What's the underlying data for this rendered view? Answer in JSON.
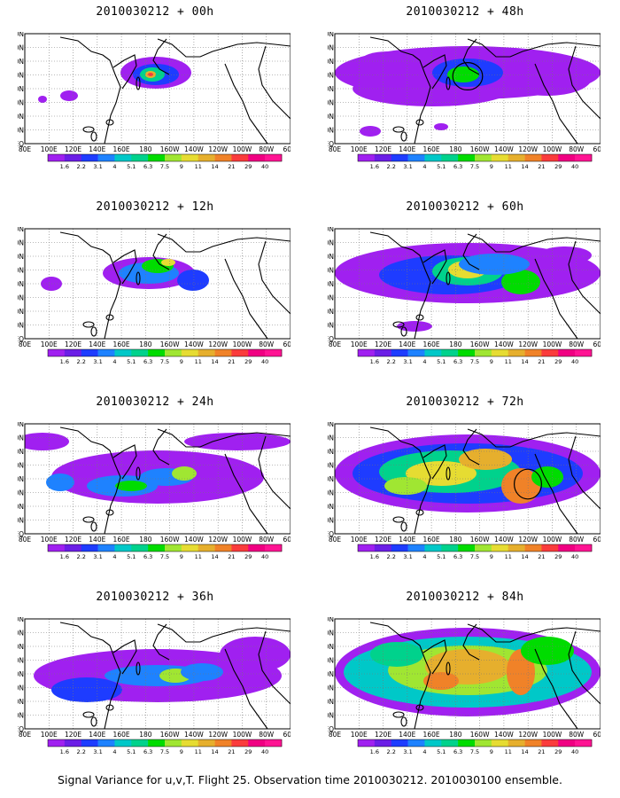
{
  "panels": [
    {
      "title": "2010030212 + 00h"
    },
    {
      "title": "2010030212 + 48h"
    },
    {
      "title": "2010030212 + 12h"
    },
    {
      "title": "2010030212 + 60h"
    },
    {
      "title": "2010030212 + 24h"
    },
    {
      "title": "2010030212 + 72h"
    },
    {
      "title": "2010030212 + 36h"
    },
    {
      "title": "2010030212 + 84h"
    }
  ],
  "lat_labels": [
    "80N",
    "70N",
    "60N",
    "50N",
    "40N",
    "30N",
    "20N",
    "10N",
    "EQ"
  ],
  "lon_labels": [
    "80E",
    "100E",
    "120E",
    "140E",
    "160E",
    "180",
    "160W",
    "140W",
    "120W",
    "100W",
    "80W",
    "60W"
  ],
  "legend_levels": [
    "1.6",
    "2.2",
    "3.1",
    "4",
    "5.1",
    "6.3",
    "7.5",
    "9",
    "11",
    "14",
    "21",
    "29",
    "40"
  ],
  "legend_colors": [
    "#a020f0",
    "#6b1ee6",
    "#1e3cff",
    "#1e82ff",
    "#00c8c8",
    "#00d28c",
    "#00dc00",
    "#a0e632",
    "#e6dc32",
    "#e6af2d",
    "#f08228",
    "#fa3c3c",
    "#f00082",
    "#ff1493"
  ],
  "footer": "Signal Variance for u,v,T. Flight 25. Observation time 2010030212. 2010030100 ensemble."
}
